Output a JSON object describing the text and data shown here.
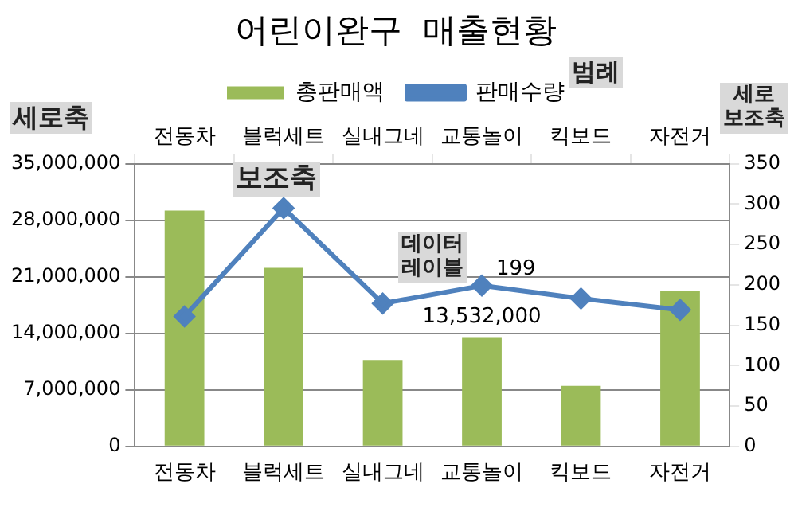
{
  "chart_data": {
    "type": "bar",
    "title": "어린이완구  매출현황",
    "categories": [
      "전동차",
      "블럭세트",
      "실내그네",
      "교통놀이",
      "킥보드",
      "자전거"
    ],
    "series": [
      {
        "name": "총판매액",
        "color": "#9bbb59",
        "values": [
          29200000,
          22100000,
          10700000,
          13532000,
          7500000,
          19300000
        ],
        "value_labels": [
          null,
          null,
          null,
          "13,532,000",
          null,
          null
        ]
      },
      {
        "name": "판매수량",
        "type": "line",
        "axis": "y2",
        "color": "#4f81bd",
        "values": [
          161,
          295,
          177,
          199,
          183,
          169
        ],
        "value_labels": [
          null,
          null,
          null,
          "199",
          null,
          null
        ]
      }
    ],
    "ylim": [
      0,
      35000000
    ],
    "yticks": [
      {
        "value": 0,
        "label": "0"
      },
      {
        "value": 7000000,
        "label": "7,000,000"
      },
      {
        "value": 14000000,
        "label": "14,000,000"
      },
      {
        "value": 21000000,
        "label": "21,000,000"
      },
      {
        "value": 28000000,
        "label": "28,000,000"
      },
      {
        "value": 35000000,
        "label": "35,000,000"
      }
    ],
    "y2lim": [
      0,
      350
    ],
    "y2ticks": [
      0,
      50,
      100,
      150,
      200,
      250,
      300,
      350
    ],
    "grid": "y",
    "legend": "top",
    "marker": "diamond",
    "line_style": "solid",
    "annotations": [
      "범례",
      "세로축",
      "세로\n보조축",
      "보조축",
      "데이터\n레이블"
    ]
  }
}
